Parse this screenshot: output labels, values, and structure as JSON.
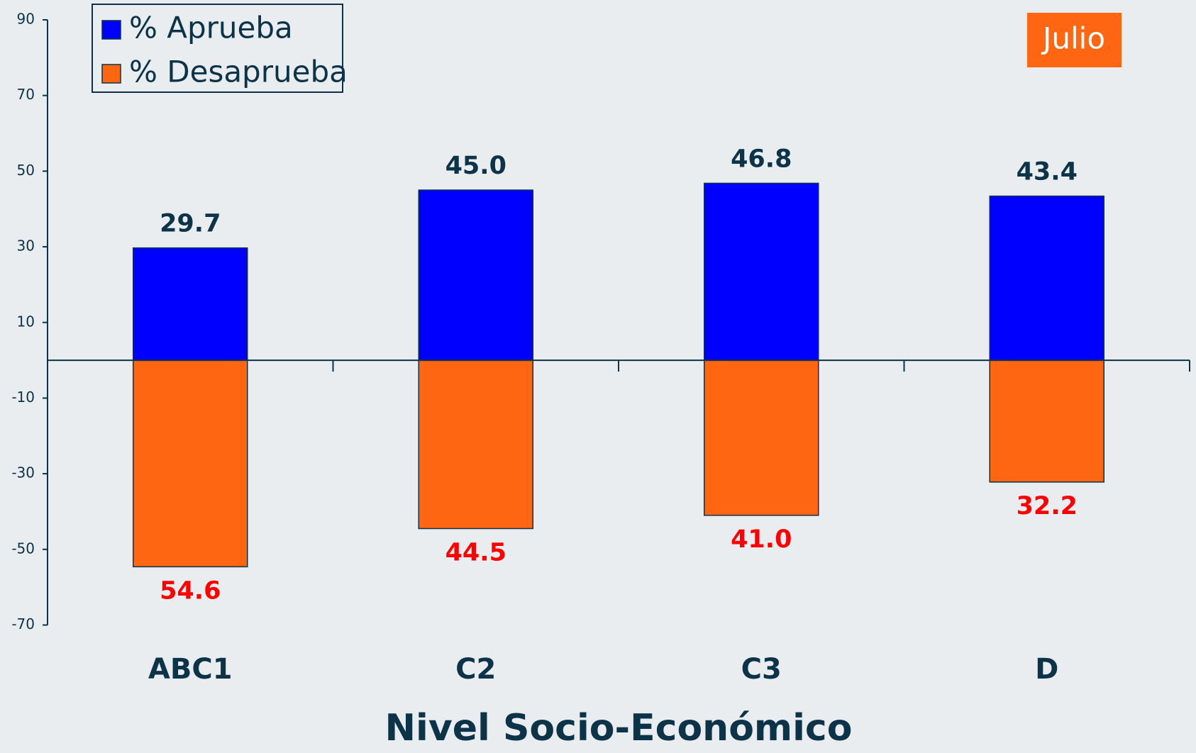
{
  "chart_data": {
    "type": "bar",
    "xlabel": "Nivel Socio-Económico",
    "annotation": "Julio",
    "categories": [
      "ABC1",
      "C2",
      "C3",
      "D"
    ],
    "series": [
      {
        "name": "% Aprueba",
        "color": "#0000ff",
        "label_color": "#0d3349",
        "values": [
          29.7,
          45.0,
          46.8,
          43.4
        ],
        "value_labels": [
          "29.7",
          "45.0",
          "46.8",
          "43.4"
        ]
      },
      {
        "name": "% Desaprueba",
        "color": "#ff6611",
        "label_color": "#ff0000",
        "values": [
          -54.6,
          -44.5,
          -41.0,
          -32.2
        ],
        "value_labels": [
          "54.6",
          "44.5",
          "41.0",
          "32.2"
        ]
      }
    ],
    "ylim": [
      -70,
      90
    ],
    "yticks": [
      -70,
      -50,
      -30,
      -10,
      10,
      30,
      50,
      70,
      90
    ],
    "legend": "upper left"
  }
}
